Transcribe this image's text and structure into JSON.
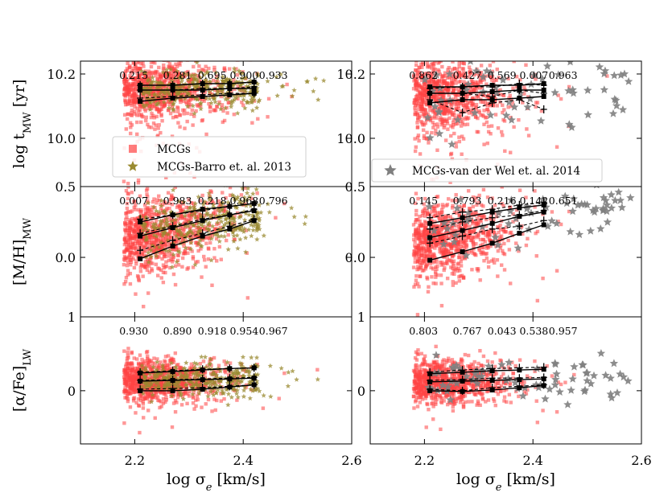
{
  "chart_data": {
    "type": "scatter",
    "x_range": [
      2.1,
      2.6
    ],
    "xlabel_prefix": "log σ",
    "xlabel_subscript": "e",
    "xlabel_suffix": " [km/s]",
    "x_ticks": [
      "2.2",
      "2.4",
      "2.6"
    ],
    "bins": [
      2.21,
      2.27,
      2.325,
      2.375,
      2.42
    ],
    "colors": {
      "mcg": "#ff4444",
      "barro": "#9a8a30",
      "vdw": "#7f7f7f",
      "line": "#000000"
    },
    "rows": [
      {
        "id": "age",
        "ylabel_main": "log t",
        "ylabel_sub": "MW",
        "ylabel_suffix": " [yr]",
        "y_range": [
          9.85,
          10.24
        ],
        "y_ticks": [
          "10.0",
          "10.2"
        ],
        "y_tick_values": [
          10.0,
          10.2
        ],
        "panels": [
          {
            "side": "left",
            "pvalues": [
              "0.215",
              "0.281",
              "0.695",
              "0.900",
              "0.933"
            ],
            "cloud": {
              "center": 10.15,
              "spread": 0.045,
              "slope": 0.0,
              "tail": 0.25
            },
            "comparison": "barro",
            "comp_center": 10.15,
            "comp_spread": 0.03,
            "comp_slope": 0.0,
            "median": [
              10.15,
              10.15,
              10.15,
              10.155,
              10.155
            ],
            "upper": [
              10.165,
              10.165,
              10.17,
              10.17,
              10.175
            ],
            "lower": [
              10.115,
              10.125,
              10.13,
              10.135,
              10.14
            ],
            "comp_median": [
              10.15,
              10.15,
              10.155,
              10.155,
              10.16
            ],
            "comp_upper": [
              10.165,
              10.165,
              10.17,
              10.17,
              10.175
            ],
            "comp_lower": [
              10.125,
              10.13,
              10.135,
              10.14,
              10.14
            ]
          },
          {
            "side": "right",
            "pvalues": [
              "0.862",
              "0.427",
              "0.569",
              "0.007",
              "0.963"
            ],
            "cloud": {
              "center": 10.14,
              "spread": 0.06,
              "slope": 0.0,
              "tail": 0.3
            },
            "comparison": "vdw",
            "comp_center": 10.14,
            "comp_spread": 0.06,
            "comp_slope": 0.0,
            "median": [
              10.14,
              10.14,
              10.145,
              10.15,
              10.15
            ],
            "upper": [
              10.16,
              10.16,
              10.165,
              10.165,
              10.17
            ],
            "lower": [
              10.11,
              10.12,
              10.12,
              10.125,
              10.13
            ],
            "comp_median": [
              10.14,
              10.14,
              10.13,
              10.15,
              10.14
            ],
            "comp_upper": [
              10.155,
              10.16,
              10.16,
              10.17,
              10.165
            ],
            "comp_lower": [
              10.12,
              10.08,
              10.11,
              10.12,
              10.09
            ]
          }
        ]
      },
      {
        "id": "metallicity",
        "ylabel_main": "[M/H]",
        "ylabel_sub": "MW",
        "ylabel_suffix": "",
        "y_range": [
          -0.42,
          0.5
        ],
        "y_ticks": [
          "0.0",
          "0.5"
        ],
        "y_tick_values": [
          0.0,
          0.5
        ],
        "panels": [
          {
            "side": "left",
            "pvalues": [
              "0.007",
              "0.983",
              "0.218",
              "0.968",
              "0.796"
            ],
            "cloud": {
              "center": 0.2,
              "spread": 0.13,
              "slope": 0.6,
              "tail": 0.2
            },
            "comparison": "barro",
            "comp_center": 0.22,
            "comp_spread": 0.1,
            "comp_slope": 0.6,
            "median": [
              0.15,
              0.21,
              0.26,
              0.3,
              0.33
            ],
            "upper": [
              0.25,
              0.3,
              0.34,
              0.36,
              0.38
            ],
            "lower": [
              -0.01,
              0.08,
              0.15,
              0.2,
              0.26
            ],
            "comp_median": [
              0.17,
              0.22,
              0.27,
              0.3,
              0.34
            ],
            "comp_upper": [
              0.27,
              0.3,
              0.33,
              0.36,
              0.38
            ],
            "comp_lower": [
              0.05,
              0.12,
              0.17,
              0.22,
              0.27
            ]
          },
          {
            "side": "right",
            "pvalues": [
              "0.145",
              "0.793",
              "0.216",
              "0.142",
              "0.651"
            ],
            "cloud": {
              "center": 0.18,
              "spread": 0.13,
              "slope": 0.6,
              "tail": 0.2
            },
            "comparison": "vdw",
            "comp_center": 0.25,
            "comp_spread": 0.1,
            "comp_slope": 0.4,
            "median": [
              0.14,
              0.19,
              0.24,
              0.29,
              0.32
            ],
            "upper": [
              0.24,
              0.28,
              0.32,
              0.35,
              0.37
            ],
            "lower": [
              -0.02,
              0.04,
              0.1,
              0.17,
              0.23
            ],
            "comp_median": [
              0.2,
              0.25,
              0.28,
              0.3,
              0.33
            ],
            "comp_upper": [
              0.28,
              0.32,
              0.34,
              0.37,
              0.39
            ],
            "comp_lower": [
              0.1,
              0.15,
              0.2,
              0.22,
              0.26
            ]
          }
        ]
      },
      {
        "id": "alpha",
        "ylabel_main": "[α/Fe]",
        "ylabel_sub": "LW",
        "ylabel_suffix": "",
        "y_range": [
          -0.72,
          1.0
        ],
        "y_ticks": [
          "0",
          "1"
        ],
        "y_tick_values": [
          0.0,
          1.0
        ],
        "panels": [
          {
            "side": "left",
            "pvalues": [
              "0.930",
              "0.890",
              "0.918",
              "0.954",
              "0.967"
            ],
            "cloud": {
              "center": 0.15,
              "spread": 0.15,
              "slope": 0.0,
              "tail": 0.2
            },
            "comparison": "barro",
            "comp_center": 0.16,
            "comp_spread": 0.12,
            "comp_slope": 0.0,
            "median": [
              0.13,
              0.14,
              0.15,
              0.16,
              0.17
            ],
            "upper": [
              0.24,
              0.26,
              0.28,
              0.3,
              0.31
            ],
            "lower": [
              0.0,
              0.0,
              0.02,
              0.05,
              0.08
            ],
            "comp_median": [
              0.14,
              0.15,
              0.16,
              0.17,
              0.18
            ],
            "comp_upper": [
              0.25,
              0.27,
              0.29,
              0.3,
              0.31
            ],
            "comp_lower": [
              0.02,
              0.03,
              0.04,
              0.06,
              0.08
            ]
          },
          {
            "side": "right",
            "pvalues": [
              "0.803",
              "0.767",
              "0.043",
              "0.538",
              "0.957"
            ],
            "cloud": {
              "center": 0.13,
              "spread": 0.15,
              "slope": 0.0,
              "tail": 0.2
            },
            "comparison": "vdw",
            "comp_center": 0.15,
            "comp_spread": 0.14,
            "comp_slope": 0.0,
            "median": [
              0.12,
              0.13,
              0.14,
              0.15,
              0.16
            ],
            "upper": [
              0.23,
              0.25,
              0.27,
              0.28,
              0.29
            ],
            "lower": [
              0.0,
              -0.01,
              0.01,
              0.04,
              0.07
            ],
            "comp_median": [
              0.14,
              0.15,
              0.17,
              0.17,
              0.18
            ],
            "comp_upper": [
              0.25,
              0.28,
              0.3,
              0.31,
              0.32
            ],
            "comp_lower": [
              0.02,
              0.0,
              0.04,
              0.06,
              0.08
            ]
          }
        ]
      }
    ],
    "legends": {
      "left": [
        {
          "marker": "square",
          "color": "#ff4444",
          "label": "MCGs"
        },
        {
          "marker": "star",
          "color": "#9a8a30",
          "label": "MCGs-Barro et. al. 2013"
        }
      ],
      "right": [
        {
          "marker": "star",
          "color": "#7f7f7f",
          "label": "MCGs-van der Wel et. al. 2014"
        }
      ]
    }
  }
}
